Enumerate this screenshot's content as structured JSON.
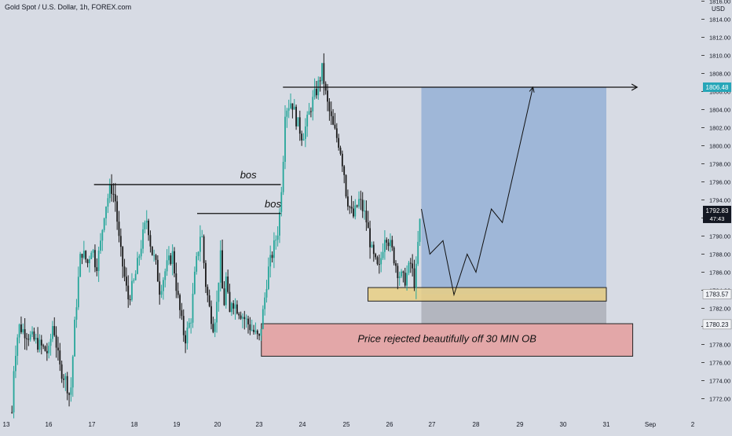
{
  "header": {
    "symbol_title": "Gold Spot / U.S. Dollar, 1h, FOREX.com",
    "currency": "USD"
  },
  "colors": {
    "background": "#d7dbe4",
    "up_candle": "#26a69a",
    "down_candle": "#1a1a1a",
    "target_zone": "#9fb7d8",
    "stop_zone": "#b3b6bf",
    "entry_zone": "#e9cf84",
    "ob_zone": "#e3a7a8",
    "last_price_tag": "#131722",
    "current_price_tag": "#26a6b8"
  },
  "chart_data": {
    "type": "candlestick",
    "title": "Gold Spot / U.S. Dollar, 1h, FOREX.com",
    "ylabel": "USD",
    "ylim": [
      1770,
      1816
    ],
    "grid": false,
    "y_ticks": [
      "1816.00",
      "1814.00",
      "1812.00",
      "1810.00",
      "1808.00",
      "1806.00",
      "1804.00",
      "1802.00",
      "1800.00",
      "1798.00",
      "1796.00",
      "1794.00",
      "1792.00",
      "1790.00",
      "1788.00",
      "1786.00",
      "1784.00",
      "1782.00",
      "1780.00",
      "1778.00",
      "1776.00",
      "1774.00",
      "1772.00"
    ],
    "x_ticks": [
      "13",
      "16",
      "17",
      "18",
      "19",
      "20",
      "23",
      "24",
      "25",
      "26",
      "27",
      "28",
      "29",
      "30",
      "31",
      "Sep",
      "2"
    ],
    "price_tags": [
      {
        "label": "1806.48",
        "value": 1806.48,
        "style": "current"
      },
      {
        "label": "1792.83",
        "value": 1792.83,
        "style": "dark",
        "sub": "47:43"
      },
      {
        "label": "1783.57",
        "value": 1783.57,
        "style": "light"
      },
      {
        "label": "1780.23",
        "value": 1780.23,
        "style": "light"
      }
    ],
    "candle_path": [
      [
        13.4,
        1770.5
      ],
      [
        13.5,
        1775
      ],
      [
        13.7,
        1778
      ],
      [
        13.9,
        1780
      ],
      [
        16.0,
        1777
      ],
      [
        16.1,
        1780.5
      ],
      [
        16.25,
        1775.5
      ],
      [
        16.4,
        1774
      ],
      [
        16.5,
        1772
      ],
      [
        16.6,
        1780
      ],
      [
        16.7,
        1786
      ],
      [
        16.75,
        1788.5
      ],
      [
        16.9,
        1787
      ],
      [
        17.0,
        1789
      ],
      [
        17.1,
        1786.5
      ],
      [
        17.2,
        1789
      ],
      [
        17.3,
        1793
      ],
      [
        17.45,
        1795.5
      ],
      [
        17.55,
        1794
      ],
      [
        17.65,
        1789
      ],
      [
        17.75,
        1786
      ],
      [
        17.85,
        1783
      ],
      [
        18.0,
        1785
      ],
      [
        18.1,
        1787.5
      ],
      [
        18.2,
        1790
      ],
      [
        18.3,
        1792
      ],
      [
        18.4,
        1788.5
      ],
      [
        18.5,
        1787
      ],
      [
        18.6,
        1784
      ],
      [
        18.75,
        1786.5
      ],
      [
        18.9,
        1788
      ],
      [
        19.0,
        1784
      ],
      [
        19.1,
        1781
      ],
      [
        19.2,
        1778.5
      ],
      [
        19.35,
        1781
      ],
      [
        19.45,
        1786
      ],
      [
        19.6,
        1791
      ],
      [
        19.7,
        1785
      ],
      [
        19.8,
        1782
      ],
      [
        19.9,
        1780
      ],
      [
        20.0,
        1783
      ],
      [
        20.1,
        1786
      ],
      [
        20.2,
        1788
      ],
      [
        20.3,
        1785
      ],
      [
        20.45,
        1782
      ],
      [
        20.6,
        1785.5
      ],
      [
        20.75,
        1783
      ],
      [
        20.9,
        1781
      ],
      [
        21.0,
        1783
      ],
      [
        23.0,
        1778.5
      ],
      [
        23.1,
        1782
      ],
      [
        23.2,
        1786
      ],
      [
        23.3,
        1788
      ],
      [
        23.45,
        1791
      ],
      [
        23.55,
        1798
      ],
      [
        23.6,
        1804
      ],
      [
        23.75,
        1805
      ],
      [
        23.85,
        1803
      ],
      [
        24.0,
        1801
      ],
      [
        24.1,
        1802.5
      ],
      [
        24.2,
        1804.5
      ],
      [
        24.35,
        1806.5
      ],
      [
        24.45,
        1808.5
      ],
      [
        24.55,
        1805
      ],
      [
        24.7,
        1802
      ],
      [
        24.85,
        1800
      ],
      [
        24.95,
        1797
      ],
      [
        25.0,
        1794.5
      ],
      [
        25.15,
        1792
      ],
      [
        25.3,
        1794
      ],
      [
        25.45,
        1792
      ],
      [
        25.6,
        1788
      ],
      [
        25.75,
        1786
      ],
      [
        25.9,
        1790.5
      ],
      [
        26.05,
        1788.5
      ],
      [
        26.2,
        1786
      ],
      [
        26.35,
        1785
      ],
      [
        26.5,
        1787
      ],
      [
        26.6,
        1784.5
      ],
      [
        26.7,
        1791
      ],
      [
        26.75,
        1792.8
      ]
    ],
    "annotations": [
      {
        "text": "bos",
        "x": 24.2,
        "y": 1795.7
      },
      {
        "text": "bos",
        "x": 23.5,
        "y": 1792.5
      },
      {
        "text": "Price rejected beautifully off 30 MIN OB",
        "x": 26.8,
        "y": 1778.6
      }
    ],
    "levels": [
      {
        "name": "bos-high",
        "from": 17.05,
        "to": 23.5,
        "value": 1795.7
      },
      {
        "name": "bos-low",
        "from": 19.5,
        "to": 23.5,
        "value": 1792.5
      },
      {
        "name": "target",
        "from": 23.55,
        "to": 31.7,
        "value": 1806.48
      }
    ],
    "zones": [
      {
        "name": "target",
        "from": 26.75,
        "to": 31.0,
        "low": 1783.57,
        "high": 1806.48
      },
      {
        "name": "stop",
        "from": 26.75,
        "to": 31.0,
        "low": 1780.23,
        "high": 1783.57
      },
      {
        "name": "entry",
        "from": 25.5,
        "to": 31.0,
        "low": 1782.8,
        "high": 1784.3
      },
      {
        "name": "ob",
        "from": 23.05,
        "to": 31.6,
        "low": 1776.7,
        "high": 1780.3
      }
    ],
    "projection": [
      [
        26.75,
        1793
      ],
      [
        26.95,
        1788
      ],
      [
        27.25,
        1789.5
      ],
      [
        27.5,
        1783.5
      ],
      [
        27.8,
        1788
      ],
      [
        28.0,
        1786
      ],
      [
        28.35,
        1793
      ],
      [
        28.6,
        1791.5
      ],
      [
        29.3,
        1806.48
      ]
    ]
  }
}
